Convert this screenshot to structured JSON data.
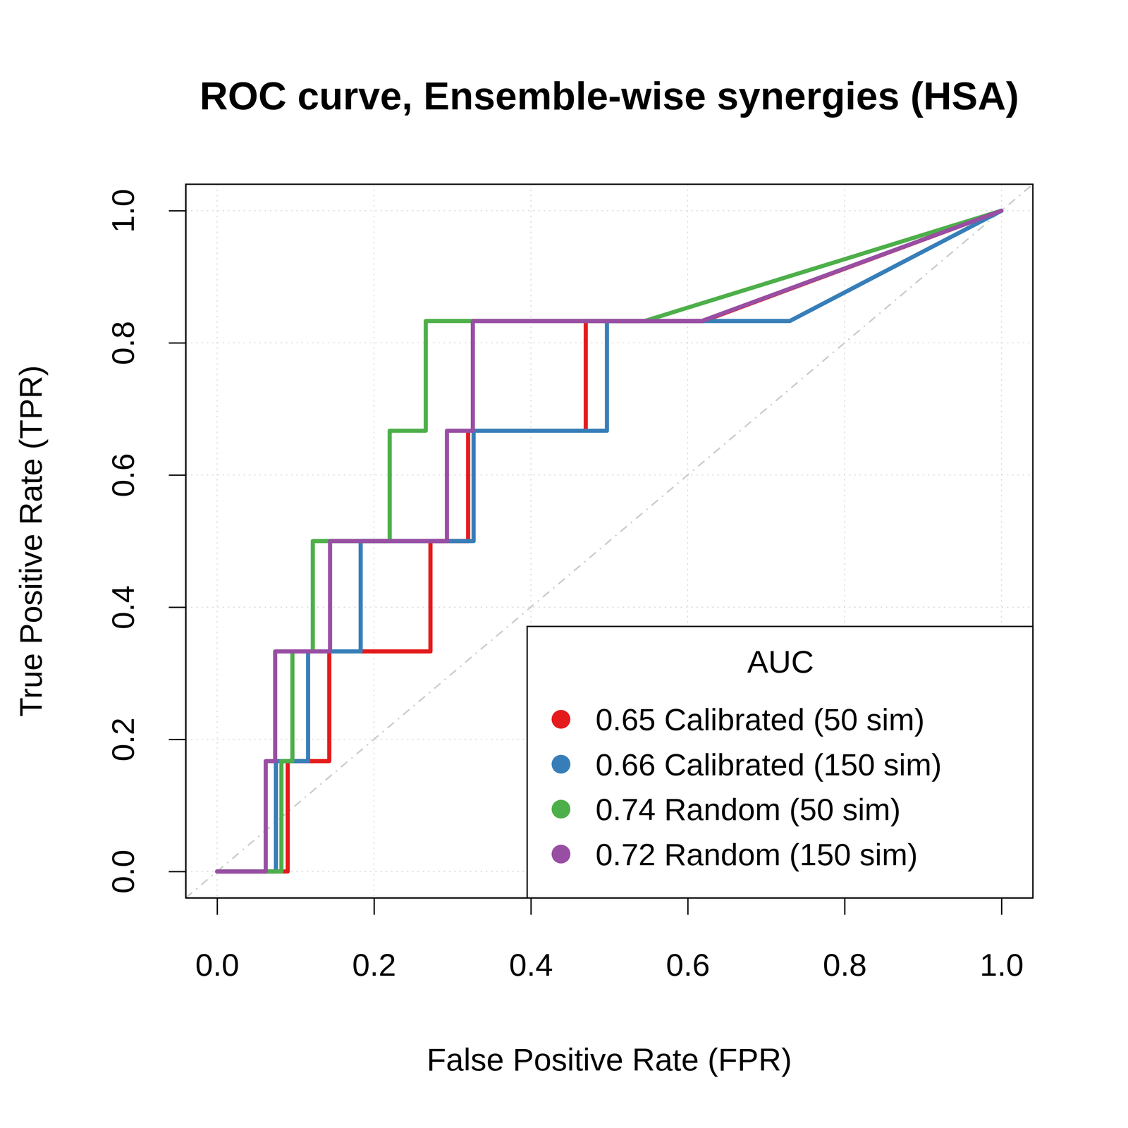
{
  "chart_data": {
    "type": "line",
    "title": "ROC curve, Ensemble-wise synergies (HSA)",
    "x_label": "False Positive Rate (FPR)",
    "y_label": "True Positive Rate (TPR)",
    "legend_title": "AUC",
    "legend": "bottom-right",
    "grid": true,
    "xlim": [
      -0.04,
      1.04
    ],
    "ylim": [
      -0.04,
      1.04
    ],
    "xticks": [
      {
        "value": 0,
        "label": "0.0"
      },
      0.2,
      0.4,
      0.6,
      0.8,
      {
        "value": 1,
        "label": "1.0"
      }
    ],
    "yticks": [
      {
        "value": 0,
        "label": "0.0"
      },
      0.2,
      0.4,
      0.6,
      0.8,
      {
        "value": 1,
        "label": "1.0"
      }
    ],
    "series": [
      {
        "name": "0.65 Calibrated (50 sim)",
        "color": "#e41a1c",
        "x": [
          0,
          0.09,
          0.09,
          0.143,
          0.143,
          0.272,
          0.272,
          0.32,
          0.32,
          0.47,
          0.47,
          0.62,
          1
        ],
        "values": [
          0,
          0,
          0.167,
          0.167,
          0.333,
          0.333,
          0.5,
          0.5,
          0.667,
          0.667,
          0.833,
          0.833,
          1
        ]
      },
      {
        "name": "0.66 Calibrated (150 sim)",
        "color": "#377eb8",
        "x": [
          0,
          0.075,
          0.075,
          0.116,
          0.116,
          0.183,
          0.183,
          0.327,
          0.327,
          0.497,
          0.497,
          0.73,
          1
        ],
        "values": [
          0,
          0,
          0.167,
          0.167,
          0.333,
          0.333,
          0.5,
          0.5,
          0.667,
          0.667,
          0.833,
          0.833,
          1
        ]
      },
      {
        "name": "0.74 Random (50 sim)",
        "color": "#4daf4a",
        "x": [
          0,
          0.082,
          0.082,
          0.096,
          0.096,
          0.122,
          0.122,
          0.22,
          0.22,
          0.266,
          0.266,
          0.545,
          1
        ],
        "values": [
          0,
          0,
          0.167,
          0.167,
          0.333,
          0.333,
          0.5,
          0.5,
          0.667,
          0.667,
          0.833,
          0.833,
          1
        ]
      },
      {
        "name": "0.72 Random (150 sim)",
        "color": "#984ea3",
        "x": [
          0,
          0.062,
          0.062,
          0.074,
          0.074,
          0.144,
          0.144,
          0.293,
          0.293,
          0.326,
          0.326,
          0.618,
          1
        ],
        "values": [
          0,
          0,
          0.167,
          0.167,
          0.333,
          0.333,
          0.5,
          0.5,
          0.667,
          0.667,
          0.833,
          0.833,
          1
        ]
      }
    ]
  }
}
